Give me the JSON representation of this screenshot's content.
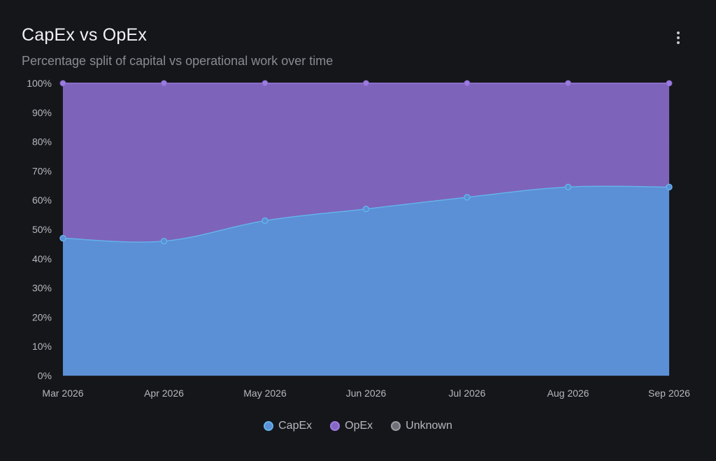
{
  "header": {
    "title": "CapEx vs OpEx",
    "subtitle": "Percentage split of capital vs operational work over time"
  },
  "menu": {
    "icon": "more-vertical-icon"
  },
  "colors": {
    "background": "#15161a",
    "capex": "#5b8fd6",
    "capex_line": "#63b3e8",
    "opex": "#8467c4",
    "opex_line": "#9c7be0",
    "unknown": "#6f7077",
    "axis_text": "#b7b8bf",
    "grid": "#2a2b32"
  },
  "chart_data": {
    "type": "area",
    "stacked": true,
    "categories": [
      "Mar 2026",
      "Apr 2026",
      "May 2026",
      "Jun 2026",
      "Jul 2026",
      "Aug 2026",
      "Sep 2026"
    ],
    "series": [
      {
        "name": "CapEx",
        "values": [
          47,
          46,
          53,
          57,
          61,
          64.5,
          64.5
        ]
      },
      {
        "name": "OpEx",
        "values": [
          53,
          54,
          47,
          43,
          39,
          35.5,
          35.5
        ]
      },
      {
        "name": "Unknown",
        "values": [
          0,
          0,
          0,
          0,
          0,
          0,
          0
        ]
      }
    ],
    "y_ticks": [
      "0%",
      "10%",
      "20%",
      "30%",
      "40%",
      "50%",
      "60%",
      "70%",
      "80%",
      "90%",
      "100%"
    ],
    "ylim": [
      0,
      100
    ],
    "grid": true,
    "legend_position": "bottom-center"
  }
}
